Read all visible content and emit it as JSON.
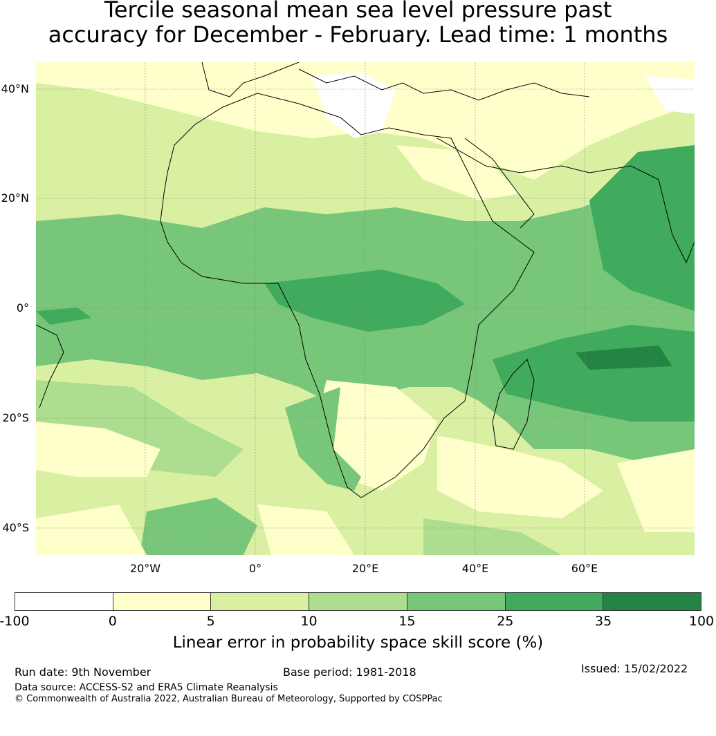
{
  "title": {
    "line1": "Tercile seasonal mean sea level pressure past",
    "line2": "accuracy for December - February. Lead time: 1 months"
  },
  "map": {
    "lat_labels": [
      "40°N",
      "20°N",
      "0°",
      "20°S",
      "40°S"
    ],
    "lon_labels": [
      "20°W",
      "0°",
      "20°E",
      "40°E",
      "60°E"
    ]
  },
  "colorbar": {
    "colors": [
      "#ffffff",
      "#ffffcc",
      "#d9f0a3",
      "#addd8e",
      "#78c679",
      "#41ab5d",
      "#238443"
    ],
    "ticks": [
      "-100",
      "0",
      "5",
      "10",
      "15",
      "25",
      "35",
      "100"
    ],
    "label": "Linear error in probability space skill score (%)"
  },
  "footer": {
    "run_date": "Run date: 9th November",
    "base_period": "Base period: 1981-2018",
    "issued": "Issued: 15/02/2022",
    "data_source": "Data source: ACCESS-S2 and ERA5 Climate Reanalysis",
    "copyright": "© Commonwealth of Australia 2022, Australian Bureau of Meteorology, Supported by COSPPac"
  }
}
